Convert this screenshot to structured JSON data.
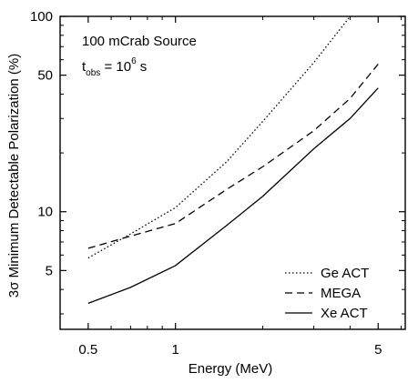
{
  "chart_data": {
    "type": "line",
    "xlabel": "Energy (MeV)",
    "ylabel": "3σ Minimum Detectable Polarization (%)",
    "xscale": "log",
    "yscale": "log",
    "xlim": [
      0.4,
      6.2
    ],
    "ylim": [
      2.5,
      100
    ],
    "x_ticks": [
      0.5,
      1,
      5
    ],
    "x_tick_labels": [
      "0.5",
      "1",
      "5"
    ],
    "y_ticks": [
      5,
      10,
      50,
      100
    ],
    "y_tick_labels": [
      "5",
      "10",
      "50",
      "100"
    ],
    "grid": false,
    "legend_position": "bottom-right",
    "annotation": {
      "line1": "100 mCrab Source",
      "line2_main": "t",
      "line2_sub": "obs",
      "line2_eq": " = 10",
      "line2_sup": "6",
      "line2_unit": " s"
    },
    "series": [
      {
        "name": "Ge ACT",
        "style": "dotted",
        "x": [
          0.5,
          0.7,
          1.0,
          1.5,
          2.0,
          3.0,
          4.0
        ],
        "y": [
          5.8,
          7.7,
          10.5,
          18,
          29,
          58,
          100
        ]
      },
      {
        "name": "MEGA",
        "style": "dashed",
        "x": [
          0.5,
          0.7,
          1.0,
          1.5,
          2.0,
          3.0,
          4.0,
          5.0
        ],
        "y": [
          6.5,
          7.5,
          8.7,
          13,
          17,
          26,
          38,
          57
        ]
      },
      {
        "name": "Xe ACT",
        "style": "solid",
        "x": [
          0.5,
          0.7,
          1.0,
          1.5,
          2.0,
          3.0,
          4.0,
          5.0
        ],
        "y": [
          3.4,
          4.1,
          5.3,
          8.5,
          12,
          21,
          30,
          43
        ]
      }
    ],
    "colors": {
      "line": "#000000",
      "frame": "#000000",
      "background": "#ffffff"
    }
  }
}
